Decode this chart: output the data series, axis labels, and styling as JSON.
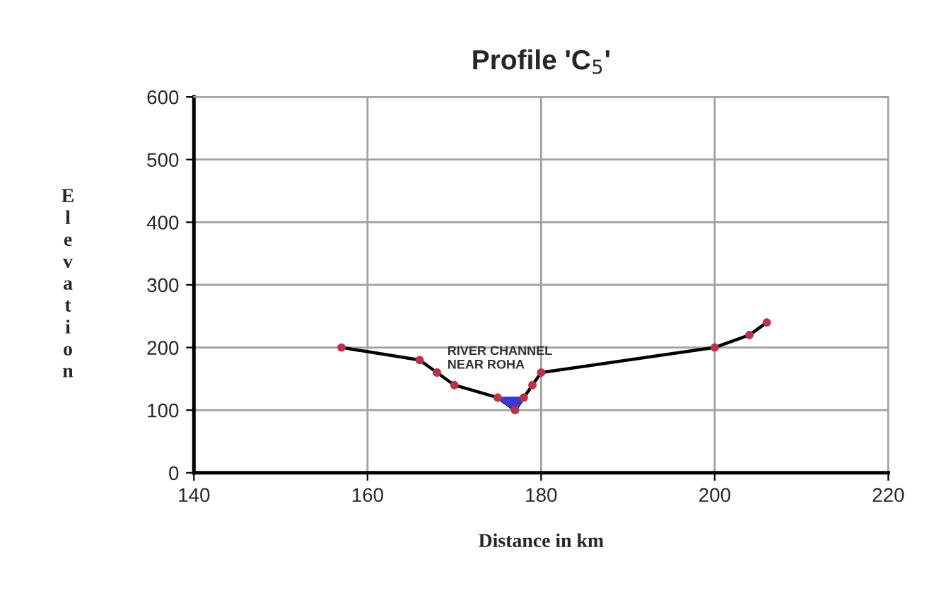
{
  "chart_data": {
    "type": "line",
    "title": "Profile 'C$_{5}$'",
    "xlabel": "Distance in km",
    "ylabel": "Elevation",
    "x": [
      157,
      166,
      168,
      170,
      175,
      177,
      178,
      179,
      180,
      200,
      204,
      206
    ],
    "series": [
      {
        "color": "#000000",
        "colors": [
          "#c0304a",
          "#c0304a",
          "#c0304a",
          "#c0304a",
          "#c0304a",
          "#c0304a",
          "#c0304a",
          "#c0304a",
          "#c0304a",
          "#c0304a",
          "#c0304a",
          "#c0304a"
        ],
        "values": [
          200,
          180,
          160,
          140,
          120,
          100,
          120,
          140,
          160,
          200,
          220,
          240
        ]
      }
    ],
    "annotations": [
      "RIVER CHANNEL\nNEAR ROHA"
    ],
    "xlim": [
      140,
      220
    ],
    "xticks": [
      140,
      160,
      180,
      200,
      220
    ],
    "ylim": [
      0,
      600
    ],
    "yticks": [
      0,
      100,
      200,
      300,
      400,
      500,
      600
    ],
    "grid": true,
    "marker": "circle",
    "line_style": "solid"
  }
}
